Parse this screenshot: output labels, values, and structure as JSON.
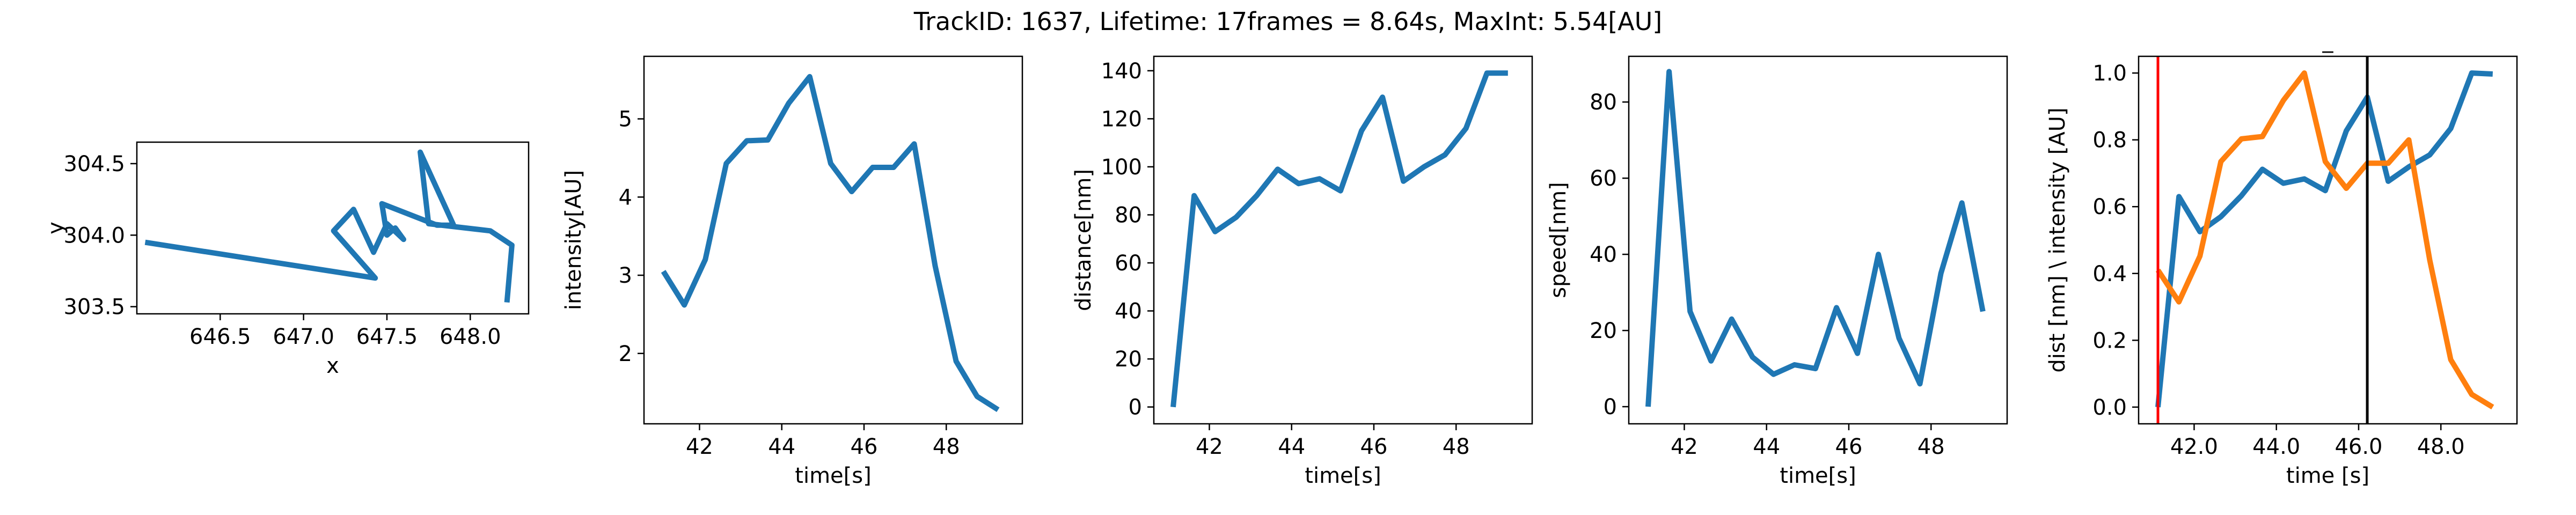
{
  "figure": {
    "title": "TrackID: 1637, Lifetime: 17frames = 8.64s, MaxInt: 5.54[AU]"
  },
  "chart_data": [
    {
      "type": "line",
      "id": "xy",
      "title": "",
      "xlabel": "x",
      "ylabel": "y",
      "xlim": [
        646.0,
        648.35
      ],
      "ylim": [
        303.45,
        304.65
      ],
      "xticks": [
        646.5,
        647.0,
        647.5,
        648.0
      ],
      "yticks": [
        303.5,
        304.0,
        304.5
      ],
      "tick_decimals": 1,
      "series": [
        {
          "color": "#1f77b4",
          "x": [
            646.05,
            647.43,
            647.18,
            647.3,
            647.42,
            647.5,
            647.6,
            647.55,
            647.5,
            647.47,
            647.8,
            647.9,
            647.7,
            647.75,
            648.12,
            648.25,
            648.22
          ],
          "y": [
            303.95,
            303.7,
            304.03,
            304.18,
            303.88,
            304.08,
            303.97,
            304.05,
            304.0,
            304.22,
            304.07,
            304.07,
            304.58,
            304.08,
            304.03,
            303.93,
            303.53
          ]
        }
      ]
    },
    {
      "type": "line",
      "id": "intensity",
      "title": "",
      "xlabel": "time[s]",
      "ylabel": "intensity[AU]",
      "xlim": [
        40.65,
        49.85
      ],
      "ylim": [
        1.1,
        5.8
      ],
      "xticks": [
        42,
        44,
        46,
        48
      ],
      "yticks": [
        2,
        3,
        4,
        5
      ],
      "tick_decimals": 0,
      "series": [
        {
          "color": "#1f77b4",
          "x": [
            41.12,
            41.63,
            42.14,
            42.65,
            43.15,
            43.66,
            44.17,
            44.68,
            45.19,
            45.7,
            46.21,
            46.72,
            47.22,
            47.73,
            48.24,
            48.75,
            49.26
          ],
          "y": [
            3.05,
            2.62,
            3.2,
            4.43,
            4.72,
            4.73,
            5.2,
            5.54,
            4.43,
            4.07,
            4.38,
            4.38,
            4.68,
            3.12,
            1.9,
            1.45,
            1.28
          ]
        }
      ]
    },
    {
      "type": "line",
      "id": "distance",
      "title": "",
      "xlabel": "time[s]",
      "ylabel": "distance[nm]",
      "xlim": [
        40.65,
        49.85
      ],
      "ylim": [
        -7,
        146
      ],
      "xticks": [
        42,
        44,
        46,
        48
      ],
      "yticks": [
        0,
        20,
        40,
        60,
        80,
        100,
        120,
        140
      ],
      "tick_decimals": 0,
      "series": [
        {
          "color": "#1f77b4",
          "x": [
            41.12,
            41.63,
            42.14,
            42.65,
            43.15,
            43.66,
            44.17,
            44.68,
            45.19,
            45.7,
            46.21,
            46.72,
            47.22,
            47.73,
            48.24,
            48.75,
            49.26
          ],
          "y": [
            0,
            88,
            73,
            79,
            88,
            99,
            93,
            95,
            90,
            115,
            129,
            94,
            100,
            105,
            116,
            139,
            139
          ]
        }
      ]
    },
    {
      "type": "line",
      "id": "speed",
      "title": "",
      "xlabel": "time[s]",
      "ylabel": "speed[nm]",
      "xlim": [
        40.65,
        49.85
      ],
      "ylim": [
        -4.5,
        92
      ],
      "xticks": [
        42,
        44,
        46,
        48
      ],
      "yticks": [
        0,
        20,
        40,
        60,
        80
      ],
      "tick_decimals": 0,
      "series": [
        {
          "color": "#1f77b4",
          "x": [
            41.12,
            41.63,
            42.14,
            42.65,
            43.15,
            43.66,
            44.17,
            44.68,
            45.19,
            45.7,
            46.21,
            46.72,
            47.22,
            47.73,
            48.24,
            48.75,
            49.26
          ],
          "y": [
            0,
            88,
            25,
            12,
            23,
            13,
            8.5,
            11,
            10,
            26,
            14,
            40,
            18,
            6,
            35,
            53.5,
            25
          ]
        }
      ]
    },
    {
      "type": "line",
      "id": "normalized",
      "title": "_",
      "xlabel": "time [s]",
      "ylabel": "dist [nm] \\ intensity [AU]",
      "xlim": [
        40.65,
        49.85
      ],
      "ylim": [
        -0.05,
        1.05
      ],
      "xticks": [
        42,
        44,
        46,
        48
      ],
      "yticks": [
        0.0,
        0.2,
        0.4,
        0.6,
        0.8,
        1.0
      ],
      "tick_decimals": 1,
      "vlines": [
        {
          "x": 41.12,
          "color": "#ff0000"
        },
        {
          "x": 46.21,
          "color": "#000000"
        }
      ],
      "series": [
        {
          "color": "#1f77b4",
          "x": [
            41.12,
            41.63,
            42.14,
            42.65,
            43.15,
            43.66,
            44.17,
            44.68,
            45.19,
            45.7,
            46.21,
            46.72,
            47.22,
            47.73,
            48.24,
            48.75,
            49.26
          ],
          "y": [
            0.0,
            0.63,
            0.525,
            0.57,
            0.633,
            0.712,
            0.67,
            0.683,
            0.648,
            0.827,
            0.928,
            0.676,
            0.719,
            0.755,
            0.834,
            1.0,
            0.997
          ]
        },
        {
          "color": "#ff7f0e",
          "x": [
            41.12,
            41.63,
            42.14,
            42.65,
            43.15,
            43.66,
            44.17,
            44.68,
            45.19,
            45.7,
            46.21,
            46.72,
            47.22,
            47.73,
            48.24,
            48.75,
            49.26
          ],
          "y": [
            0.41,
            0.315,
            0.452,
            0.735,
            0.803,
            0.81,
            0.918,
            1.0,
            0.735,
            0.655,
            0.73,
            0.73,
            0.8,
            0.44,
            0.142,
            0.038,
            0.0
          ]
        }
      ]
    }
  ]
}
